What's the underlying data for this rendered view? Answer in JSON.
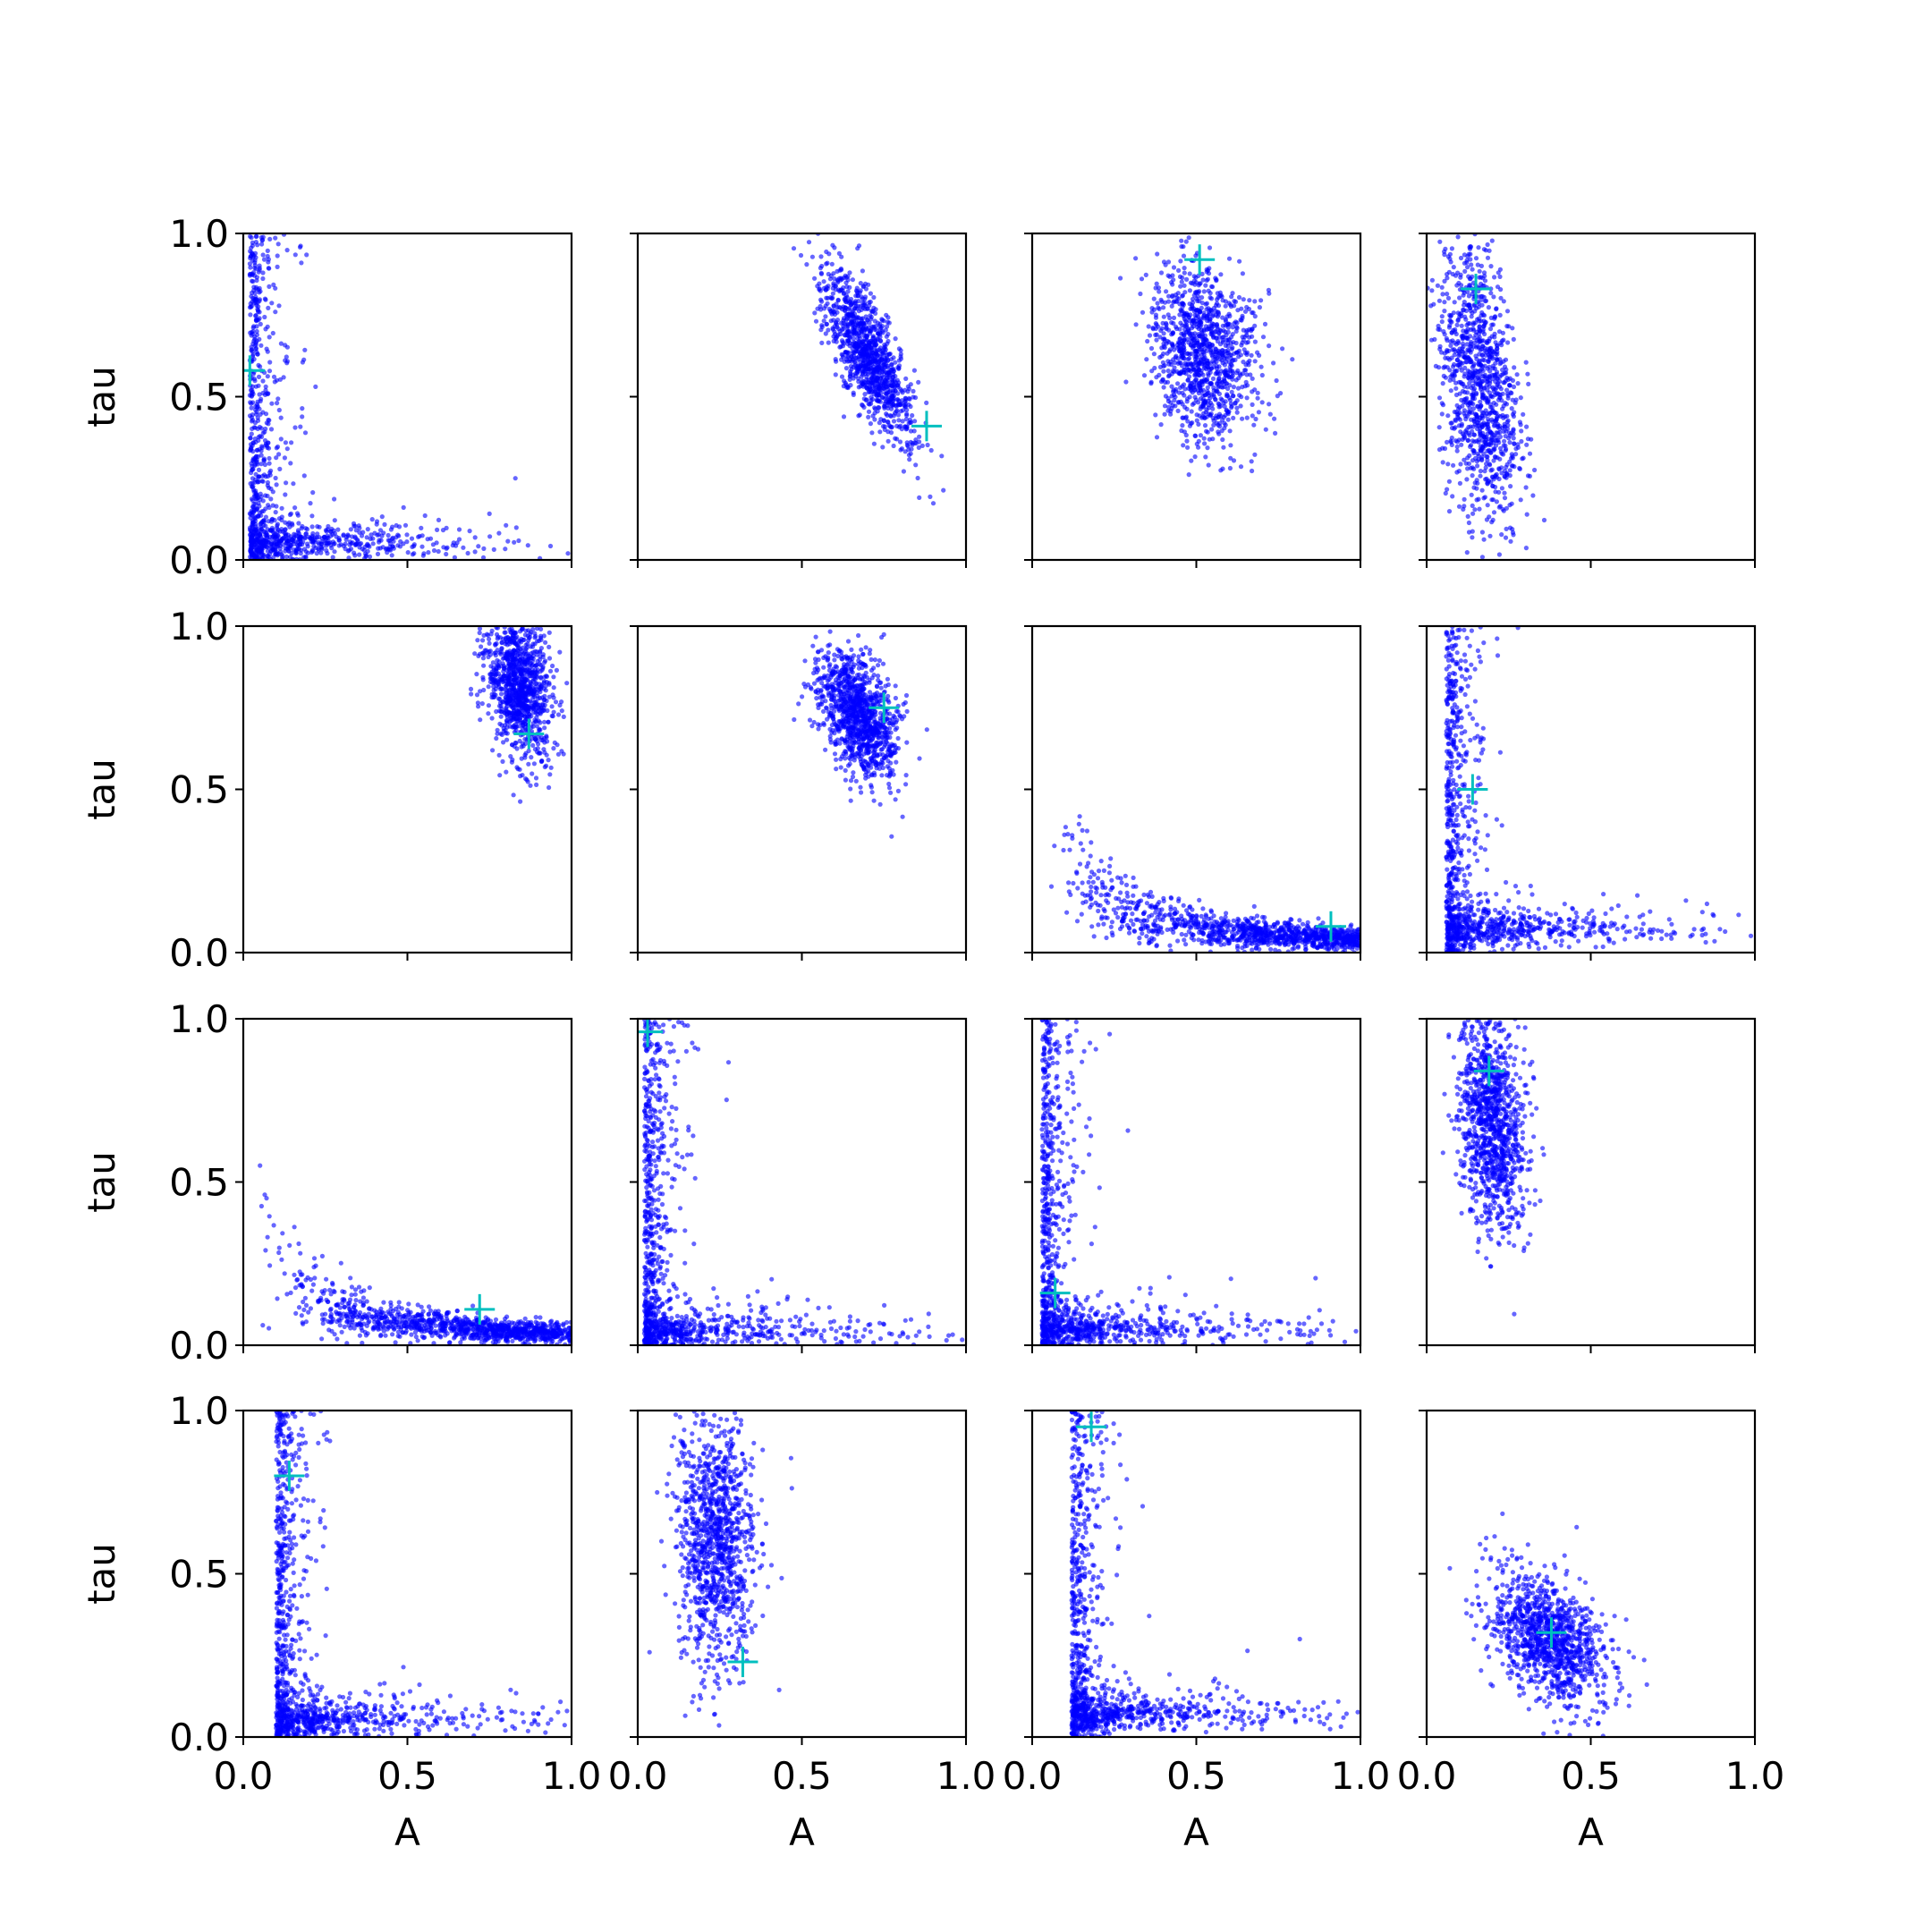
{
  "chart_data": {
    "type": "scatter",
    "layout": {
      "rows": 4,
      "cols": 4
    },
    "xlabel": "A",
    "ylabel": "tau",
    "xlim": [
      0,
      1
    ],
    "ylim": [
      0,
      1
    ],
    "xticks": [
      "0.0",
      "0.5",
      "1.0"
    ],
    "yticks": [
      "0.0",
      "0.5",
      "1.0"
    ],
    "point_color": "#0000ff",
    "marker_color": "#00bfbf",
    "grid": false,
    "legend": "none",
    "panels": [
      {
        "row": 0,
        "col": 0,
        "shape": "L",
        "center": [
          0.02,
          0.05
        ],
        "marker": [
          0.02,
          0.58
        ]
      },
      {
        "row": 0,
        "col": 1,
        "shape": "blob",
        "center": [
          0.7,
          0.63
        ],
        "spread": [
          0.07,
          0.13
        ],
        "corr": -0.75,
        "marker": [
          0.88,
          0.41
        ]
      },
      {
        "row": 0,
        "col": 2,
        "shape": "blob",
        "center": [
          0.52,
          0.63
        ],
        "spread": [
          0.08,
          0.13
        ],
        "corr": -0.2,
        "marker": [
          0.51,
          0.92
        ]
      },
      {
        "row": 0,
        "col": 3,
        "shape": "vband",
        "center": [
          0.16,
          0.55
        ],
        "spread": [
          0.06,
          0.22
        ],
        "corr": -0.3,
        "marker": [
          0.15,
          0.83
        ]
      },
      {
        "row": 1,
        "col": 0,
        "shape": "blob",
        "center": [
          0.84,
          0.82
        ],
        "spread": [
          0.05,
          0.11
        ],
        "corr": -0.3,
        "marker": [
          0.87,
          0.67
        ]
      },
      {
        "row": 1,
        "col": 1,
        "shape": "blob",
        "center": [
          0.67,
          0.73
        ],
        "spread": [
          0.06,
          0.1
        ],
        "corr": -0.45,
        "marker": [
          0.75,
          0.75
        ]
      },
      {
        "row": 1,
        "col": 2,
        "shape": "hyperbola",
        "center": [
          0.45,
          0.15
        ],
        "marker": [
          0.91,
          0.08
        ]
      },
      {
        "row": 1,
        "col": 3,
        "shape": "L",
        "center": [
          0.06,
          0.08
        ],
        "marker": [
          0.14,
          0.5
        ]
      },
      {
        "row": 2,
        "col": 0,
        "shape": "hyperbola",
        "center": [
          0.6,
          0.1
        ],
        "marker": [
          0.72,
          0.11
        ]
      },
      {
        "row": 2,
        "col": 1,
        "shape": "L",
        "center": [
          0.02,
          0.03
        ],
        "marker": [
          0.03,
          0.96
        ]
      },
      {
        "row": 2,
        "col": 2,
        "shape": "L",
        "center": [
          0.03,
          0.04
        ],
        "marker": [
          0.07,
          0.16
        ]
      },
      {
        "row": 2,
        "col": 3,
        "shape": "vband",
        "center": [
          0.2,
          0.68
        ],
        "spread": [
          0.05,
          0.17
        ],
        "corr": -0.2,
        "marker": [
          0.19,
          0.84
        ]
      },
      {
        "row": 3,
        "col": 0,
        "shape": "L",
        "center": [
          0.1,
          0.05
        ],
        "marker": [
          0.14,
          0.8
        ]
      },
      {
        "row": 3,
        "col": 1,
        "shape": "vband",
        "center": [
          0.24,
          0.6
        ],
        "spread": [
          0.06,
          0.2
        ],
        "corr": 0.0,
        "marker": [
          0.32,
          0.23
        ]
      },
      {
        "row": 3,
        "col": 2,
        "shape": "L",
        "center": [
          0.12,
          0.08
        ],
        "marker": [
          0.18,
          0.95
        ]
      },
      {
        "row": 3,
        "col": 3,
        "shape": "blob",
        "center": [
          0.37,
          0.3
        ],
        "spread": [
          0.09,
          0.1
        ],
        "corr": -0.4,
        "marker": [
          0.38,
          0.32
        ]
      }
    ]
  }
}
